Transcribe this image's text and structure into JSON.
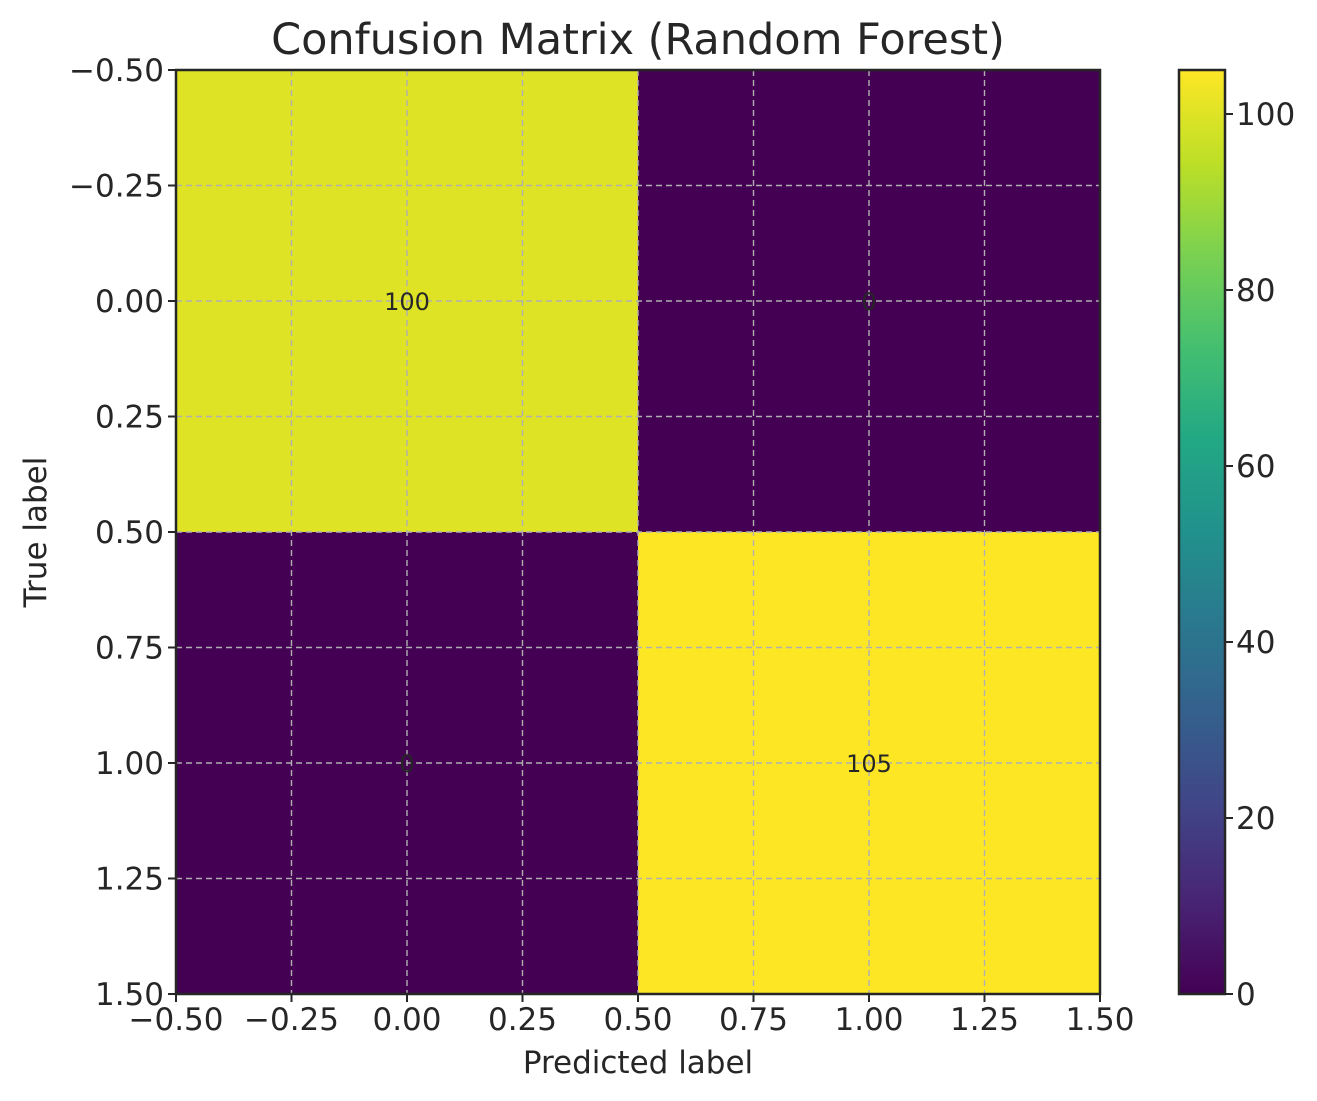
{
  "chart_data": {
    "type": "heatmap",
    "title": "Confusion Matrix (Random Forest)",
    "xlabel": "Predicted label",
    "ylabel": "True label",
    "xlim": [
      -0.5,
      1.5
    ],
    "ylim": [
      1.5,
      -0.5
    ],
    "y_inverted": true,
    "grid": true,
    "x_ticks": [
      -0.5,
      -0.25,
      0.0,
      0.25,
      0.5,
      0.75,
      1.0,
      1.25,
      1.5
    ],
    "x_tick_labels": [
      "−0.50",
      "−0.25",
      "0.00",
      "0.25",
      "0.50",
      "0.75",
      "1.00",
      "1.25",
      "1.50"
    ],
    "y_ticks": [
      -0.5,
      -0.25,
      0.0,
      0.25,
      0.5,
      0.75,
      1.0,
      1.25,
      1.5
    ],
    "y_tick_labels": [
      "−0.50",
      "−0.25",
      "0.00",
      "0.25",
      "0.50",
      "0.75",
      "1.00",
      "1.25",
      "1.50"
    ],
    "matrix": [
      [
        100,
        0
      ],
      [
        0,
        105
      ]
    ],
    "cell_labels": [
      [
        "100",
        "0"
      ],
      [
        "0",
        "105"
      ]
    ],
    "colormap": "viridis",
    "colorbar": {
      "vmin": 0,
      "vmax": 105,
      "ticks": [
        0,
        20,
        40,
        60,
        80,
        100
      ],
      "tick_labels": [
        "0",
        "20",
        "40",
        "60",
        "80",
        "100"
      ]
    }
  }
}
